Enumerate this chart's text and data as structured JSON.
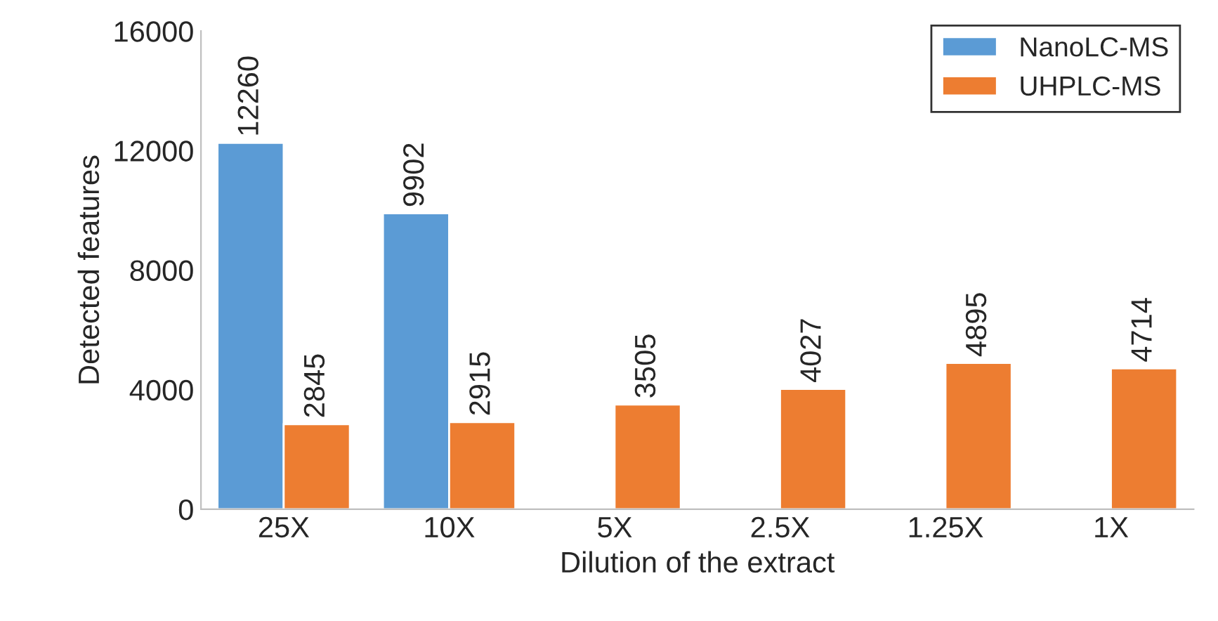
{
  "chart_data": {
    "type": "bar",
    "xlabel": "Dilution of the extract",
    "ylabel": "Detected features",
    "categories": [
      "25X",
      "10X",
      "5X",
      "2.5X",
      "1.25X",
      "1X"
    ],
    "series": [
      {
        "name": "NanoLC-MS",
        "color": "#5b9bd5",
        "values": [
          12260,
          9902,
          null,
          null,
          null,
          null
        ]
      },
      {
        "name": "UHPLC-MS",
        "color": "#ed7d31",
        "values": [
          2845,
          2915,
          3505,
          4027,
          4895,
          4714
        ]
      }
    ],
    "ylim": [
      0,
      16000
    ],
    "yticks": [
      0,
      4000,
      8000,
      12000,
      16000
    ],
    "grid": false,
    "legend": "top right",
    "data_labels": true
  }
}
